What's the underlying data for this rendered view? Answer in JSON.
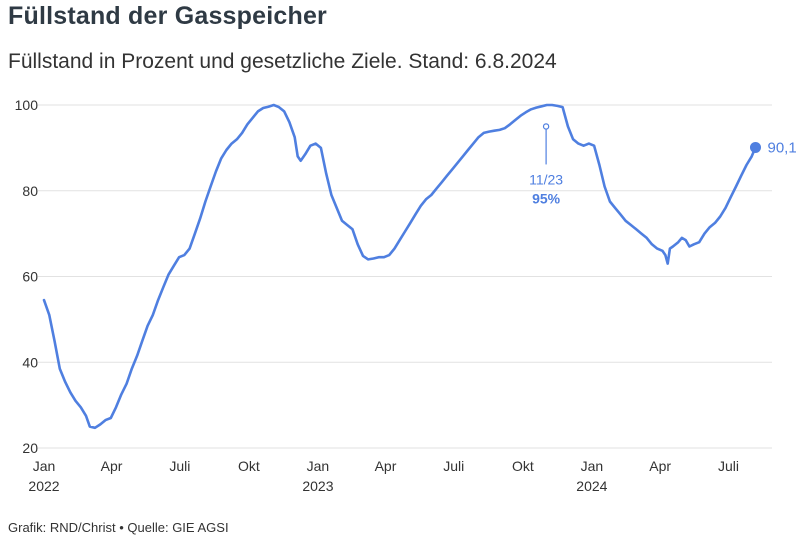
{
  "header": {
    "title": "Füllstand der Gasspeicher",
    "subtitle": "Füllstand in Prozent und gesetzliche Ziele. Stand: 6.8.2024"
  },
  "footer": {
    "credit": "Grafik: RND/Christ • Quelle: GIE AGSI"
  },
  "colors": {
    "line": "#4f7fe0",
    "grid": "#e2e2e2",
    "text": "#333333"
  },
  "chart_data": {
    "type": "line",
    "title": "Füllstand der Gasspeicher",
    "subtitle": "Füllstand in Prozent und gesetzliche Ziele. Stand: 6.8.2024",
    "xlabel": "",
    "ylabel": "",
    "ylim": [
      20,
      100
    ],
    "xlim": [
      "2022-01-01",
      "2024-08-28"
    ],
    "grid": true,
    "y_ticks": [
      {
        "value": 20,
        "label": "20"
      },
      {
        "value": 40,
        "label": "40"
      },
      {
        "value": 60,
        "label": "60"
      },
      {
        "value": 80,
        "label": "80"
      },
      {
        "value": 100,
        "label": "100"
      }
    ],
    "x_ticks": [
      {
        "date": "2022-01-01",
        "label": "Jan",
        "year": "2022"
      },
      {
        "date": "2022-04-01",
        "label": "Apr",
        "year": ""
      },
      {
        "date": "2022-07-01",
        "label": "Juli",
        "year": ""
      },
      {
        "date": "2022-10-01",
        "label": "Okt",
        "year": ""
      },
      {
        "date": "2023-01-01",
        "label": "Jan",
        "year": "2023"
      },
      {
        "date": "2023-04-01",
        "label": "Apr",
        "year": ""
      },
      {
        "date": "2023-07-01",
        "label": "Juli",
        "year": ""
      },
      {
        "date": "2023-10-01",
        "label": "Okt",
        "year": ""
      },
      {
        "date": "2024-01-01",
        "label": "Jan",
        "year": "2024"
      },
      {
        "date": "2024-04-01",
        "label": "Apr",
        "year": ""
      },
      {
        "date": "2024-07-01",
        "label": "Juli",
        "year": ""
      }
    ],
    "series": [
      {
        "name": "",
        "points": [
          [
            "2022-01-01",
            54.5
          ],
          [
            "2022-01-08",
            51
          ],
          [
            "2022-01-15",
            45
          ],
          [
            "2022-01-22",
            38.5
          ],
          [
            "2022-01-29",
            35.5
          ],
          [
            "2022-02-05",
            33
          ],
          [
            "2022-02-12",
            31
          ],
          [
            "2022-02-19",
            29.5
          ],
          [
            "2022-02-26",
            27.5
          ],
          [
            "2022-03-03",
            25
          ],
          [
            "2022-03-10",
            24.7
          ],
          [
            "2022-03-17",
            25.5
          ],
          [
            "2022-03-24",
            26.5
          ],
          [
            "2022-03-31",
            27
          ],
          [
            "2022-04-07",
            29.5
          ],
          [
            "2022-04-14",
            32.5
          ],
          [
            "2022-04-21",
            35
          ],
          [
            "2022-04-28",
            38.5
          ],
          [
            "2022-05-05",
            41.5
          ],
          [
            "2022-05-12",
            45
          ],
          [
            "2022-05-19",
            48.5
          ],
          [
            "2022-05-26",
            51
          ],
          [
            "2022-06-02",
            54.5
          ],
          [
            "2022-06-09",
            57.5
          ],
          [
            "2022-06-16",
            60.5
          ],
          [
            "2022-06-23",
            62.5
          ],
          [
            "2022-06-30",
            64.5
          ],
          [
            "2022-07-07",
            65
          ],
          [
            "2022-07-14",
            66.5
          ],
          [
            "2022-07-21",
            70
          ],
          [
            "2022-07-28",
            73.5
          ],
          [
            "2022-08-04",
            77.5
          ],
          [
            "2022-08-11",
            81
          ],
          [
            "2022-08-18",
            84.5
          ],
          [
            "2022-08-25",
            87.5
          ],
          [
            "2022-09-01",
            89.5
          ],
          [
            "2022-09-08",
            91
          ],
          [
            "2022-09-15",
            92
          ],
          [
            "2022-09-22",
            93.5
          ],
          [
            "2022-09-29",
            95.5
          ],
          [
            "2022-10-06",
            97
          ],
          [
            "2022-10-13",
            98.5
          ],
          [
            "2022-10-20",
            99.3
          ],
          [
            "2022-10-27",
            99.6
          ],
          [
            "2022-11-03",
            100
          ],
          [
            "2022-11-10",
            99.5
          ],
          [
            "2022-11-17",
            98.5
          ],
          [
            "2022-11-24",
            96
          ],
          [
            "2022-12-01",
            92.5
          ],
          [
            "2022-12-05",
            88
          ],
          [
            "2022-12-09",
            87
          ],
          [
            "2022-12-15",
            88.5
          ],
          [
            "2022-12-22",
            90.5
          ],
          [
            "2022-12-29",
            91
          ],
          [
            "2023-01-05",
            90
          ],
          [
            "2023-01-12",
            84
          ],
          [
            "2023-01-19",
            79
          ],
          [
            "2023-01-26",
            76
          ],
          [
            "2023-02-02",
            73
          ],
          [
            "2023-02-09",
            72
          ],
          [
            "2023-02-16",
            71
          ],
          [
            "2023-02-23",
            67.5
          ],
          [
            "2023-03-02",
            64.8
          ],
          [
            "2023-03-09",
            64
          ],
          [
            "2023-03-16",
            64.2
          ],
          [
            "2023-03-23",
            64.5
          ],
          [
            "2023-03-30",
            64.5
          ],
          [
            "2023-04-06",
            65
          ],
          [
            "2023-04-13",
            66.5
          ],
          [
            "2023-04-20",
            68.5
          ],
          [
            "2023-04-27",
            70.5
          ],
          [
            "2023-05-04",
            72.5
          ],
          [
            "2023-05-11",
            74.5
          ],
          [
            "2023-05-18",
            76.5
          ],
          [
            "2023-05-25",
            78
          ],
          [
            "2023-06-01",
            79
          ],
          [
            "2023-06-08",
            80.5
          ],
          [
            "2023-06-15",
            82
          ],
          [
            "2023-06-22",
            83.5
          ],
          [
            "2023-06-29",
            85
          ],
          [
            "2023-07-06",
            86.5
          ],
          [
            "2023-07-13",
            88
          ],
          [
            "2023-07-20",
            89.5
          ],
          [
            "2023-07-27",
            91
          ],
          [
            "2023-08-03",
            92.5
          ],
          [
            "2023-08-10",
            93.5
          ],
          [
            "2023-08-17",
            93.8
          ],
          [
            "2023-08-24",
            94
          ],
          [
            "2023-08-31",
            94.2
          ],
          [
            "2023-09-07",
            94.6
          ],
          [
            "2023-09-14",
            95.5
          ],
          [
            "2023-09-21",
            96.5
          ],
          [
            "2023-09-28",
            97.5
          ],
          [
            "2023-10-05",
            98.3
          ],
          [
            "2023-10-12",
            99
          ],
          [
            "2023-10-19",
            99.4
          ],
          [
            "2023-10-26",
            99.7
          ],
          [
            "2023-11-02",
            100
          ],
          [
            "2023-11-09",
            100
          ],
          [
            "2023-11-16",
            99.8
          ],
          [
            "2023-11-23",
            99.5
          ],
          [
            "2023-11-30",
            95
          ],
          [
            "2023-12-07",
            92
          ],
          [
            "2023-12-14",
            91
          ],
          [
            "2023-12-21",
            90.5
          ],
          [
            "2023-12-28",
            91
          ],
          [
            "2024-01-04",
            90.5
          ],
          [
            "2024-01-11",
            86
          ],
          [
            "2024-01-18",
            81
          ],
          [
            "2024-01-25",
            77.5
          ],
          [
            "2024-02-01",
            76
          ],
          [
            "2024-02-08",
            74.5
          ],
          [
            "2024-02-15",
            73
          ],
          [
            "2024-02-22",
            72
          ],
          [
            "2024-02-29",
            71
          ],
          [
            "2024-03-07",
            70
          ],
          [
            "2024-03-14",
            69
          ],
          [
            "2024-03-21",
            67.5
          ],
          [
            "2024-03-28",
            66.5
          ],
          [
            "2024-04-04",
            66
          ],
          [
            "2024-04-08",
            65
          ],
          [
            "2024-04-11",
            63
          ],
          [
            "2024-04-14",
            66.5
          ],
          [
            "2024-04-18",
            67
          ],
          [
            "2024-04-25",
            68
          ],
          [
            "2024-04-30",
            69
          ],
          [
            "2024-05-05",
            68.5
          ],
          [
            "2024-05-10",
            67
          ],
          [
            "2024-05-16",
            67.5
          ],
          [
            "2024-05-23",
            68
          ],
          [
            "2024-05-30",
            70
          ],
          [
            "2024-06-06",
            71.5
          ],
          [
            "2024-06-13",
            72.5
          ],
          [
            "2024-06-20",
            74
          ],
          [
            "2024-06-27",
            76
          ],
          [
            "2024-07-04",
            78.5
          ],
          [
            "2024-07-11",
            81
          ],
          [
            "2024-07-18",
            83.5
          ],
          [
            "2024-07-25",
            86
          ],
          [
            "2024-08-01",
            88
          ],
          [
            "2024-08-06",
            90.1
          ]
        ]
      }
    ],
    "annotations": [
      {
        "date": "2023-11-01",
        "value": 95,
        "label": "11/23",
        "value_label": "95%"
      }
    ],
    "end_label": {
      "date": "2024-08-06",
      "value": 90.1,
      "label": "90,1"
    }
  }
}
